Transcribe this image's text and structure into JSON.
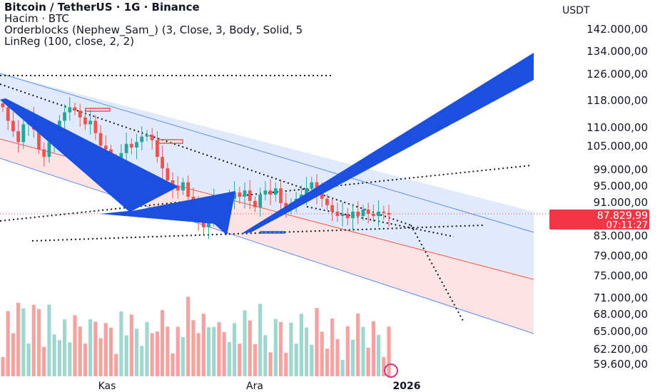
{
  "legend": {
    "title": "Bitcoin / TetherUS · 1G · Binance",
    "line2": "Hacim · BTC",
    "line3": "Orderblocks (Nephew_Sam_) (3, Close, 3, Body, Solid, 5",
    "line4": "LinReg (100, close, 2, 2)"
  },
  "price_axis": {
    "currency": "USDT",
    "ticks": [
      "142.000,00",
      "134.000,00",
      "126.000,00",
      "118.000,00",
      "110.000,00",
      "105.000,00",
      "99.000,00",
      "95.000,00",
      "91.000,00",
      "83.000,00",
      "79.000,00",
      "75.000,00",
      "71.000,00",
      "68.000,00",
      "65.000,00",
      "62.200,00",
      "59.600,00"
    ],
    "current_price": "87.829,99",
    "countdown": "07:11:27",
    "price_badge_color": "#f23645"
  },
  "time_axis": {
    "labels": [
      "Kas",
      "Ara",
      "2026"
    ]
  },
  "colors": {
    "up": "#26a69a",
    "down": "#ef5350",
    "channel_upper": "#dbe6fb",
    "channel_lower": "#fde0e0",
    "arrow": "#1b4fe0"
  },
  "chart_data": {
    "type": "candlestick",
    "title": "Bitcoin / TetherUS · 1G · Binance",
    "x": [
      "Kas",
      "Ara",
      "2026"
    ],
    "y_scale": "log",
    "ylim": [
      57000,
      150000
    ],
    "ohlc_close_approx": [
      116000,
      112000,
      109000,
      106000,
      111000,
      113000,
      109500,
      104000,
      102000,
      106000,
      108000,
      112000,
      114500,
      116000,
      115000,
      113000,
      111000,
      112000,
      108500,
      105000,
      104000,
      101000,
      99500,
      103000,
      105500,
      104500,
      106000,
      107500,
      108000,
      106500,
      102000,
      99000,
      96000,
      94500,
      93500,
      95500,
      92000,
      89500,
      86500,
      85000,
      87000,
      91500,
      90500,
      88500,
      91500,
      93000,
      92000,
      93500,
      91000,
      89500,
      92500,
      93500,
      92500,
      94000,
      90500,
      89000,
      90500,
      91500,
      92500,
      94000,
      95500,
      93000,
      91500,
      90000,
      88500,
      87500,
      88000,
      87000,
      88500,
      87500,
      89000,
      88000,
      87500,
      88500,
      88200,
      87830
    ],
    "current_price": 87829.99,
    "volume": {
      "label": "Hacim · BTC"
    },
    "indicators": [
      "Orderblocks (Nephew_Sam_) (3, Close, 3, Body, Solid, 5",
      "LinReg (100, close, 2, 2)"
    ]
  }
}
